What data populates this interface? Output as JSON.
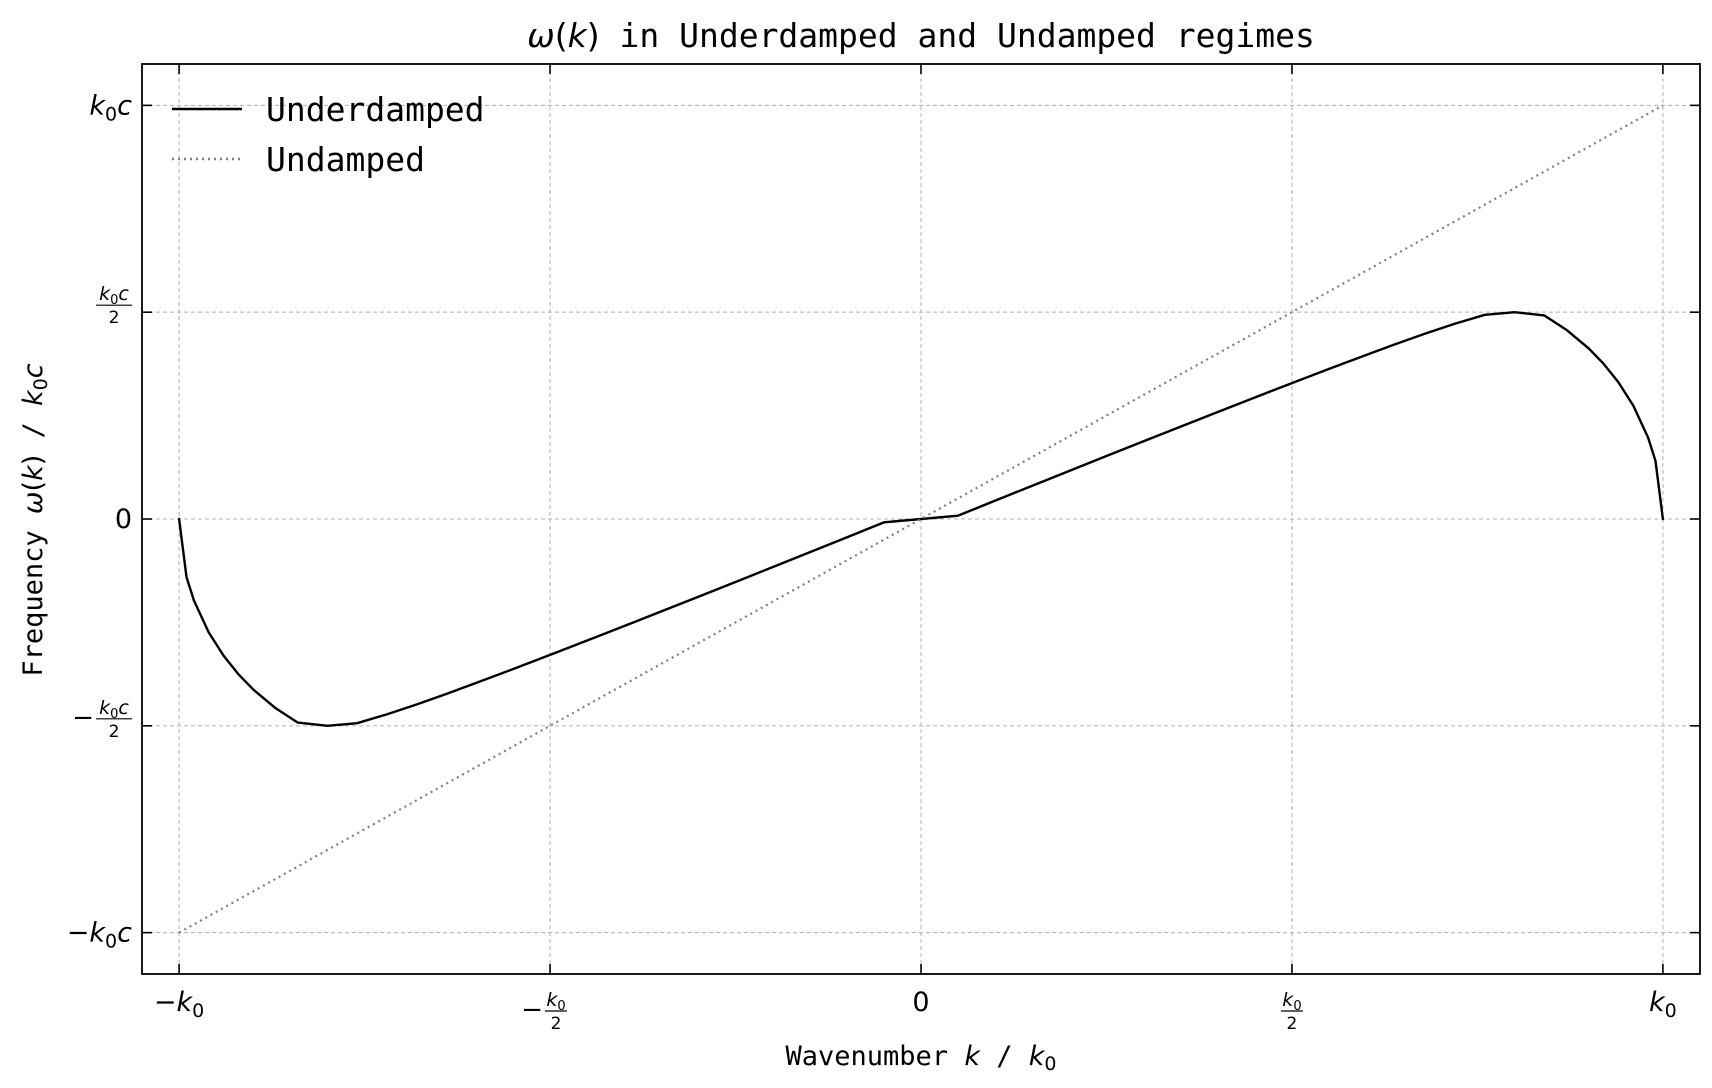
{
  "chart_data": {
    "type": "line",
    "title": {
      "sym": "ω",
      "open": "(",
      "var": "k",
      "close": ")",
      "rest": " in Underdamped and Undamped regimes"
    },
    "xlabel": {
      "text": "Wavenumber ",
      "var": "k",
      "sep": " / ",
      "unit": "k",
      "unit_sub": "0"
    },
    "ylabel": {
      "text": "Frequency ",
      "sym": "ω",
      "open": "(",
      "var": "k",
      "close": ")",
      "sep": " / ",
      "unit": "k",
      "unit_sub": "0",
      "unit_tail": "c"
    },
    "xlim": [
      -1.05,
      1.05
    ],
    "ylim": [
      -1.1,
      1.1
    ],
    "grid": true,
    "legend_position": "top-left",
    "xticks": [
      {
        "value": -1,
        "label": {
          "sign": "−",
          "main": "k",
          "sub": "0"
        }
      },
      {
        "value": -0.5,
        "label": {
          "sign": "−",
          "num": "k",
          "num_sub": "0",
          "den": "2"
        }
      },
      {
        "value": 0,
        "label": {
          "text": "0"
        }
      },
      {
        "value": 0.5,
        "label": {
          "sign": "",
          "num": "k",
          "num_sub": "0",
          "den": "2"
        }
      },
      {
        "value": 1,
        "label": {
          "sign": "",
          "main": "k",
          "sub": "0"
        }
      }
    ],
    "yticks": [
      {
        "value": 1,
        "label": {
          "sign": "",
          "main": "k",
          "sub": "0",
          "tail": "c"
        }
      },
      {
        "value": 0.5,
        "label": {
          "sign": "",
          "num": "k",
          "num_sub": "0",
          "num_tail": "c",
          "den": "2"
        }
      },
      {
        "value": 0,
        "label": {
          "text": "0"
        }
      },
      {
        "value": -0.5,
        "label": {
          "sign": "−",
          "num": "k",
          "num_sub": "0",
          "num_tail": "c",
          "den": "2"
        }
      },
      {
        "value": -1,
        "label": {
          "sign": "−",
          "main": "k",
          "sub": "0",
          "tail": "c"
        }
      }
    ],
    "series": [
      {
        "name": "Underdamped",
        "color": "#000000",
        "style": "solid",
        "x": [
          -1,
          -0.99,
          -0.98,
          -0.96,
          -0.94,
          -0.92,
          -0.9,
          -0.87,
          -0.84,
          -0.8,
          -0.76,
          -0.72,
          -0.68,
          -0.64,
          -0.6,
          -0.55,
          -0.5,
          -0.45,
          -0.4,
          -0.35,
          -0.3,
          -0.25,
          -0.2,
          -0.15,
          -0.1,
          -0.05,
          0,
          0.05,
          0.1,
          0.15,
          0.2,
          0.25,
          0.3,
          0.35,
          0.4,
          0.45,
          0.5,
          0.55,
          0.6,
          0.64,
          0.68,
          0.72,
          0.76,
          0.8,
          0.84,
          0.87,
          0.9,
          0.92,
          0.94,
          0.96,
          0.98,
          0.99,
          1
        ],
        "y": [
          0,
          -0.1404,
          -0.197,
          -0.2743,
          -0.3306,
          -0.3754,
          -0.4123,
          -0.4573,
          -0.4922,
          -0.5,
          -0.4936,
          -0.4723,
          -0.4484,
          -0.423,
          -0.3966,
          -0.363,
          -0.3286,
          -0.2938,
          -0.2588,
          -0.2234,
          -0.1879,
          -0.1522,
          -0.1164,
          -0.0805,
          -0.0444,
          -0.0081,
          0,
          0.0081,
          0.0444,
          0.0805,
          0.1164,
          0.1522,
          0.1879,
          0.2234,
          0.2588,
          0.2938,
          0.3286,
          0.363,
          0.3966,
          0.423,
          0.4484,
          0.4723,
          0.4936,
          0.5,
          0.4922,
          0.4573,
          0.4123,
          0.3754,
          0.3306,
          0.2743,
          0.197,
          0.1404,
          0
        ]
      },
      {
        "name": "Undamped",
        "color": "#7f7f7f",
        "style": "dotted",
        "x": [
          -1,
          1
        ],
        "y": [
          -1,
          1
        ]
      }
    ]
  }
}
